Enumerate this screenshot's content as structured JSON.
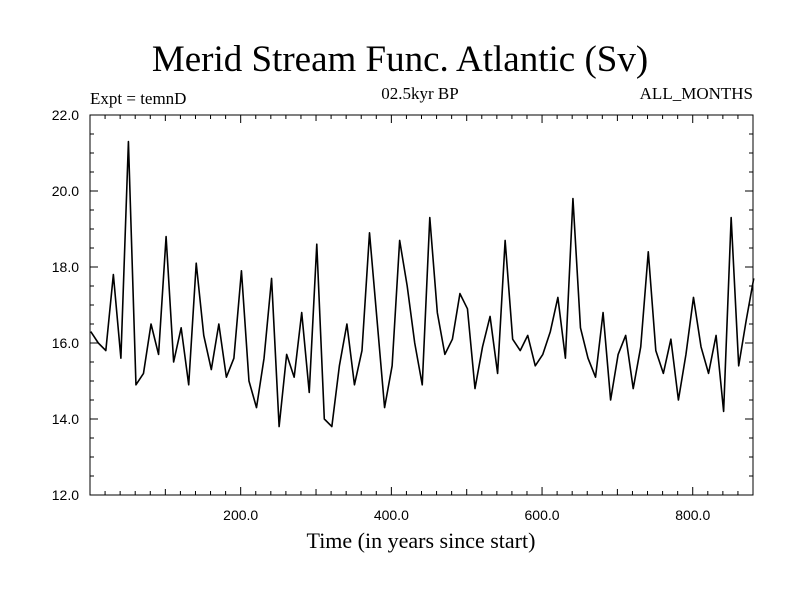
{
  "header": {
    "title": "Merid Stream Func. Atlantic (Sv)",
    "expt": "Expt = temnD",
    "subtitle": "02.5kyr BP",
    "months": "ALL_MONTHS"
  },
  "chart_data": {
    "type": "line",
    "title": "Merid Stream Func. Atlantic (Sv)",
    "xlabel": "Time (in years since start)",
    "ylabel": "",
    "xlim": [
      0,
      880
    ],
    "ylim": [
      12.0,
      22.0
    ],
    "xticks": [
      200,
      400,
      600,
      800
    ],
    "xtick_labels": [
      "200.0",
      "400.0",
      "600.0",
      "800.0"
    ],
    "yticks": [
      12,
      14,
      16,
      18,
      20,
      22
    ],
    "ytick_labels": [
      "12.0",
      "14.0",
      "16.0",
      "18.0",
      "20.0",
      "22.0"
    ],
    "grid": false,
    "series": [
      {
        "name": "Merid Stream Func. Atlantic",
        "x_start": 1,
        "x_step": 10,
        "values": [
          16.3,
          16.0,
          15.8,
          17.8,
          15.6,
          21.3,
          14.9,
          15.2,
          16.5,
          15.7,
          18.8,
          15.5,
          16.4,
          14.9,
          18.1,
          16.2,
          15.3,
          16.5,
          15.1,
          15.6,
          17.9,
          15.0,
          14.3,
          15.6,
          17.7,
          13.8,
          15.7,
          15.1,
          16.8,
          14.7,
          18.6,
          14.0,
          13.8,
          15.4,
          16.5,
          14.9,
          15.8,
          18.9,
          16.6,
          14.3,
          15.4,
          18.7,
          17.5,
          16.0,
          14.9,
          19.3,
          16.8,
          15.7,
          16.1,
          17.3,
          16.9,
          14.8,
          15.9,
          16.7,
          15.2,
          18.7,
          16.1,
          15.8,
          16.2,
          15.4,
          15.7,
          16.3,
          17.2,
          15.6,
          19.8,
          16.4,
          15.6,
          15.1,
          16.8,
          14.5,
          15.7,
          16.2,
          14.8,
          15.9,
          18.4,
          15.8,
          15.2,
          16.1,
          14.5,
          15.7,
          17.2,
          15.9,
          15.2,
          16.2,
          14.2,
          19.3,
          15.4,
          16.6,
          17.7
        ]
      }
    ]
  }
}
